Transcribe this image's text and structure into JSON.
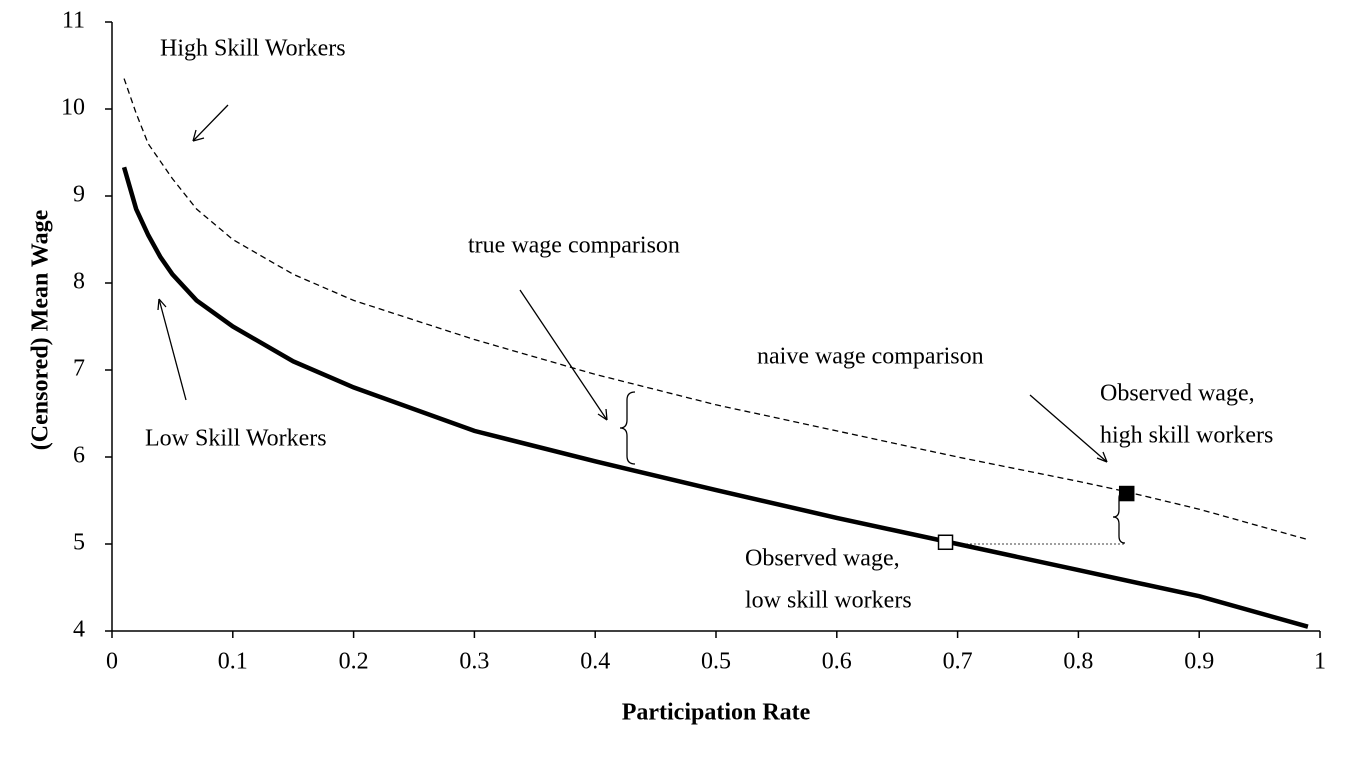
{
  "chart_data": {
    "type": "line",
    "xlabel": "Participation Rate",
    "ylabel": "(Censored) Mean Wage",
    "xlim": [
      0,
      1
    ],
    "xticks": [
      0,
      0.1,
      0.2,
      0.3,
      0.4,
      0.5,
      0.6,
      0.7,
      0.8,
      0.9,
      1
    ],
    "ylim": [
      4,
      11
    ],
    "yticks": [
      4,
      5,
      6,
      7,
      8,
      9,
      10,
      11
    ],
    "series": [
      {
        "name": "Low Skill Workers",
        "color": "#000000",
        "style": "solid",
        "x": [
          0.01,
          0.02,
          0.03,
          0.04,
          0.05,
          0.07,
          0.1,
          0.15,
          0.2,
          0.3,
          0.4,
          0.5,
          0.6,
          0.7,
          0.8,
          0.9,
          0.99
        ],
        "values": [
          9.33,
          8.85,
          8.55,
          8.3,
          8.1,
          7.8,
          7.5,
          7.1,
          6.8,
          6.3,
          5.95,
          5.62,
          5.3,
          5.0,
          4.7,
          4.4,
          4.05
        ]
      },
      {
        "name": "High Skill Workers",
        "color": "#000000",
        "style": "dashed",
        "x": [
          0.01,
          0.02,
          0.03,
          0.05,
          0.07,
          0.1,
          0.15,
          0.2,
          0.3,
          0.4,
          0.5,
          0.6,
          0.7,
          0.8,
          0.84,
          0.9,
          0.99
        ],
        "values": [
          10.35,
          9.95,
          9.6,
          9.2,
          8.85,
          8.5,
          8.1,
          7.8,
          7.35,
          6.95,
          6.6,
          6.3,
          6.0,
          5.72,
          5.6,
          5.4,
          5.05
        ]
      }
    ],
    "points": [
      {
        "x": 0.69,
        "y": 5.02,
        "fill": "#ffffff"
      },
      {
        "x": 0.84,
        "y": 5.58,
        "fill": "#000000"
      }
    ],
    "annotations": [
      {
        "text": [
          "true wage comparison"
        ]
      },
      {
        "text": [
          "naive wage comparison"
        ]
      },
      {
        "text": [
          "Observed wage,",
          "high skill workers"
        ]
      },
      {
        "text": [
          "Observed wage,",
          "low skill workers"
        ]
      }
    ]
  }
}
